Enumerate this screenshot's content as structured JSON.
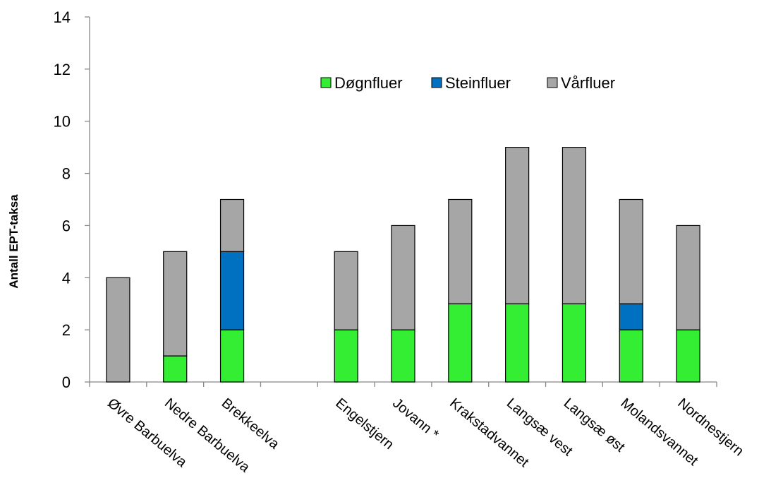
{
  "chart_data": {
    "type": "bar",
    "stacked": true,
    "title": "",
    "xlabel": "",
    "ylabel": "Antall EPT-taksa",
    "ylim": [
      0,
      14
    ],
    "yticks": [
      0,
      2,
      4,
      6,
      8,
      10,
      12,
      14
    ],
    "grid": false,
    "legend_position": "top-center",
    "categories": [
      "Øvre Barbuelva",
      "Nedre Barbuelva",
      "Brekkeelva",
      "",
      "Engelstjern",
      "Jovann *",
      "Krakstadvannet",
      "Langsæ vest",
      "Langsæ øst",
      "Molandsvannet",
      "Nordnestjern"
    ],
    "series": [
      {
        "name": "Døgnfluer",
        "color": "#33ee33",
        "values": [
          0,
          1,
          2,
          null,
          2,
          2,
          3,
          3,
          3,
          2,
          2
        ]
      },
      {
        "name": "Steinfluer",
        "color": "#0070c0",
        "values": [
          0,
          0,
          3,
          null,
          0,
          0,
          0,
          0,
          0,
          1,
          0
        ]
      },
      {
        "name": "Vårfluer",
        "color": "#a6a6a6",
        "values": [
          4,
          4,
          2,
          null,
          3,
          4,
          4,
          6,
          6,
          4,
          4
        ]
      }
    ]
  }
}
